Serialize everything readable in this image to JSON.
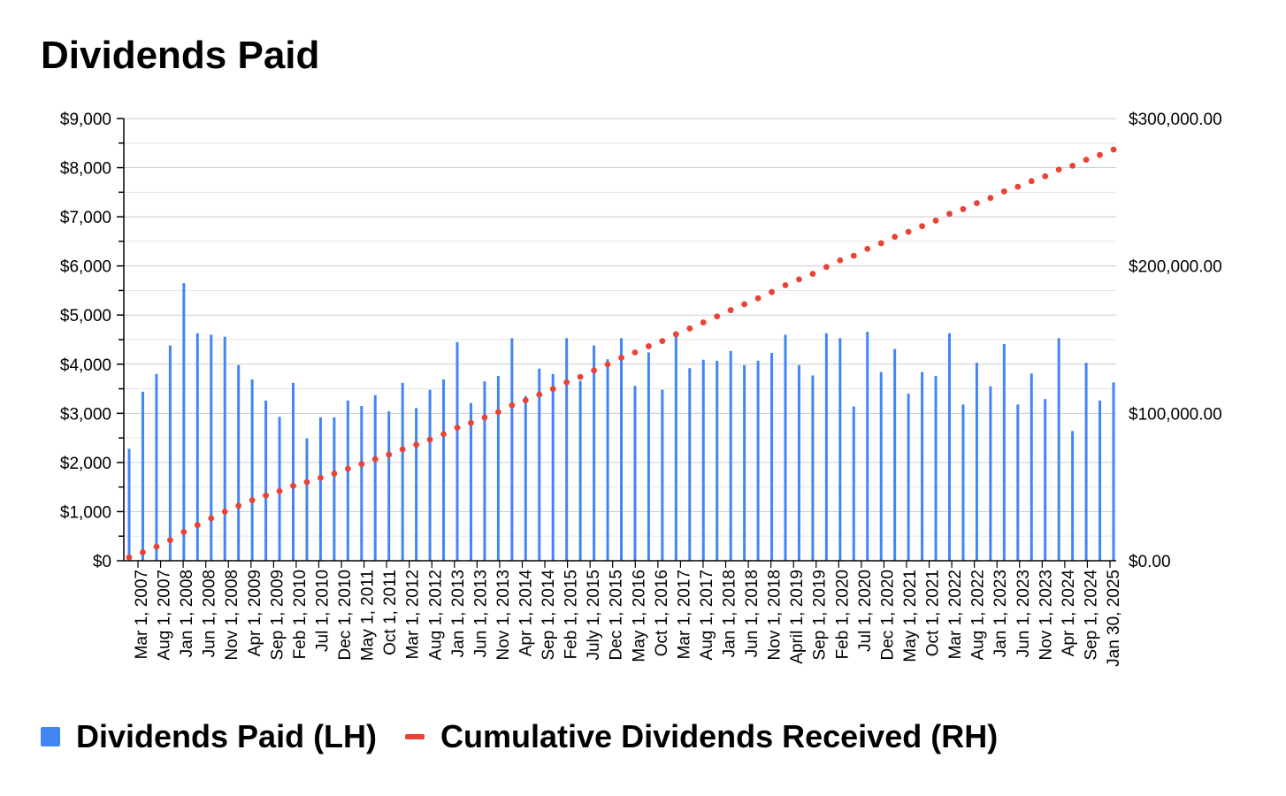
{
  "colors": {
    "bar": "#4285f4",
    "line": "#ea4335",
    "grid": "#cccccc",
    "minor_grid": "#e6e6e6",
    "axis": "#000000"
  },
  "chart_data": {
    "type": "bar",
    "title": "Dividends Paid",
    "xlabel": "",
    "ylabel": "",
    "ylim": [
      0,
      9000
    ],
    "y2lim": [
      0,
      300000
    ],
    "yticks": [
      "$0",
      "$1,000",
      "$2,000",
      "$3,000",
      "$4,000",
      "$5,000",
      "$6,000",
      "$7,000",
      "$8,000",
      "$9,000"
    ],
    "y2ticks": [
      "$0.00",
      "$100,000.00",
      "$200,000.00",
      "$300,000.00"
    ],
    "grid": true,
    "legend_position": "bottom",
    "x_labels": [
      "Mar 1, 2007",
      "Aug 1, 2007",
      "Jan 1, 2008",
      "Jun 1, 2008",
      "Nov 1, 2008",
      "Apr 1, 2009",
      "Sep 1, 2009",
      "Feb 1, 2010",
      "Jul 1, 2010",
      "Dec 1, 2010",
      "May 1, 2011",
      "Oct 1, 2011",
      "Mar 1, 2012",
      "Aug 1, 2012",
      "Jan 1, 2013",
      "Jun 1, 2013",
      "Nov 1, 2013",
      "Apr 1, 2014",
      "Sep 1, 2014",
      "Feb 1, 2015",
      "July 1, 2015",
      "Dec 1, 2015",
      "May 1, 2016",
      "Oct 1, 2016",
      "Mar 1, 2017",
      "Aug 1, 2017",
      "Jan 1, 2018",
      "Jun 1, 2018",
      "Nov 1, 2018",
      "April 1, 2019",
      "Sep 1, 2019",
      "Feb 1, 2020",
      "Jul 1, 2020",
      "Dec 1, 2020",
      "May 1, 2021",
      "Oct 1, 2021",
      "Mar 1, 2022",
      "Aug 1, 2022",
      "Jan 1, 2023",
      "Jun 1, 2023",
      "Nov 1, 2023",
      "Apr 1, 2024",
      "Sep 1, 2024",
      "Jan 30, 2025"
    ],
    "series": [
      {
        "name": "Dividends Paid (LH)",
        "type": "bar",
        "axis": "left",
        "values": [
          2280,
          3440,
          3800,
          4380,
          5650,
          4630,
          4600,
          4560,
          3980,
          3690,
          3260,
          2930,
          3620,
          2490,
          2920,
          2920,
          3260,
          3150,
          3370,
          3040,
          3620,
          3110,
          3480,
          3690,
          4450,
          3210,
          3650,
          3760,
          4530,
          3350,
          3910,
          3800,
          4530,
          3660,
          4380,
          4100,
          4530,
          3560,
          4240,
          3480,
          4640,
          3920,
          4090,
          4070,
          4270,
          3980,
          4070,
          4230,
          4600,
          3980,
          3770,
          4630,
          4530,
          3140,
          4660,
          3840,
          4310,
          3400,
          3840,
          3760,
          4630,
          3180,
          4030,
          3550,
          4410,
          3180,
          3810,
          3290,
          4530,
          2640,
          4030,
          3260,
          3630
        ]
      },
      {
        "name": "Cumulative Dividends Received (RH)",
        "type": "line",
        "axis": "right",
        "values": [
          2280,
          5720,
          9520,
          13900,
          19550,
          24180,
          28780,
          33340,
          37320,
          41010,
          44270,
          47200,
          50820,
          53310,
          56230,
          59150,
          62410,
          65560,
          68930,
          71970,
          75590,
          78700,
          82180,
          85870,
          90320,
          93530,
          97180,
          100940,
          105470,
          108820,
          112730,
          116530,
          121060,
          124720,
          129100,
          133200,
          137730,
          141290,
          145530,
          149010,
          153650,
          157570,
          161660,
          165730,
          170000,
          173980,
          178050,
          182280,
          186880,
          190860,
          194630,
          199260,
          203790,
          206930,
          211590,
          215430,
          219740,
          223140,
          226980,
          230740,
          235370,
          238550,
          242580,
          246130,
          250540,
          253720,
          257530,
          260820,
          265350,
          267990,
          272020,
          275280,
          278910
        ]
      }
    ]
  }
}
